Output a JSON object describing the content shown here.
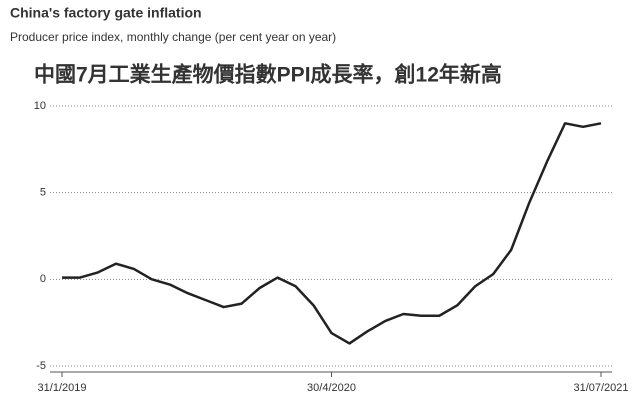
{
  "chart_data": {
    "type": "line",
    "title": "China's factory gate inflation",
    "subtitle": "Producer price index, monthly change (per cent year on year)",
    "annotation": "中國7月工業生產物價指數PPI成長率，創12年新高",
    "categories": [
      "31/1/2019",
      null,
      null,
      null,
      null,
      null,
      null,
      null,
      null,
      null,
      null,
      null,
      null,
      null,
      null,
      "30/4/2020",
      null,
      null,
      null,
      null,
      null,
      null,
      null,
      null,
      null,
      null,
      null,
      null,
      null,
      null,
      "31/07/2021"
    ],
    "series": [
      {
        "color": "#222222",
        "values": [
          0.1,
          0.1,
          0.4,
          0.9,
          0.6,
          0,
          -0.3,
          -0.8,
          -1.2,
          -1.6,
          -1.4,
          -0.5,
          0.1,
          -0.4,
          -1.5,
          -3.1,
          -3.7,
          -3.0,
          -2.4,
          -2.0,
          -2.1,
          -2.1,
          -1.5,
          -0.4,
          0.3,
          1.7,
          4.4,
          6.8,
          9.0,
          8.8,
          9.0
        ]
      }
    ],
    "ylim": [
      -5,
      10
    ],
    "yticks": [
      -5,
      0,
      5,
      10
    ],
    "grid": true
  }
}
